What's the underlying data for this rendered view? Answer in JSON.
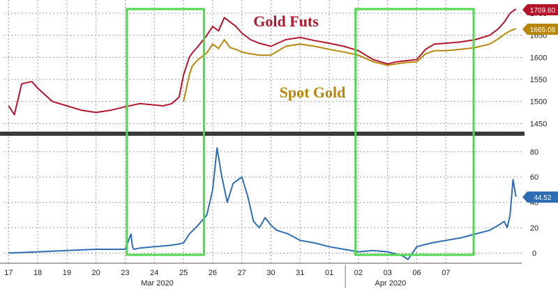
{
  "chart_data": [
    {
      "type": "line",
      "title": "",
      "xlabel": "",
      "ylabel": "",
      "ylim": [
        1430,
        1730
      ],
      "y_ticks": [
        1450,
        1500,
        1550,
        1600,
        1650,
        1700
      ],
      "y_tick_labels": [
        "1450",
        "1500",
        "1550",
        "1600",
        "1650",
        "1700"
      ],
      "annotations": [
        {
          "text": "Gold Futs",
          "color": "#b5142b"
        },
        {
          "text": "Spot Gold",
          "color": "#b8860b"
        }
      ],
      "last_value_badges": [
        {
          "text": "1709.60",
          "color": "#b5142b"
        },
        {
          "text": "1665.08",
          "color": "#b8860b"
        }
      ],
      "series": [
        {
          "color": "#b5142b",
          "x": [
            0,
            0.2,
            0.45,
            0.8,
            1,
            1.5,
            2,
            2.5,
            3,
            3.5,
            4,
            4.5,
            5,
            5.3,
            5.6,
            5.85,
            6,
            6.2,
            6.3,
            6.5,
            6.8,
            7,
            7.2,
            7.4,
            7.6,
            7.8,
            8,
            8.3,
            8.6,
            9,
            9.5,
            10,
            10.5,
            11,
            11.5,
            12,
            12.5,
            13,
            13.3,
            13.6,
            14,
            14.3,
            14.6,
            15,
            15.5,
            16,
            16.5,
            16.8,
            17,
            17.2,
            17.4
          ],
          "y": [
            1490,
            1470,
            1540,
            1545,
            1530,
            1500,
            1490,
            1480,
            1475,
            1480,
            1488,
            1495,
            1492,
            1490,
            1495,
            1510,
            1560,
            1600,
            1610,
            1625,
            1650,
            1670,
            1660,
            1690,
            1680,
            1670,
            1655,
            1640,
            1632,
            1625,
            1640,
            1645,
            1638,
            1632,
            1625,
            1615,
            1595,
            1585,
            1590,
            1592,
            1595,
            1618,
            1630,
            1632,
            1635,
            1640,
            1650,
            1665,
            1680,
            1700,
            1709.6
          ]
        },
        {
          "color": "#b8860b",
          "x": [
            6,
            6.2,
            6.3,
            6.5,
            6.8,
            7,
            7.2,
            7.4,
            7.6,
            7.8,
            8,
            8.3,
            8.6,
            9,
            9.5,
            10,
            10.5,
            11,
            11.5,
            12,
            12.5,
            13,
            13.3,
            13.6,
            14,
            14.3,
            14.6,
            15,
            15.5,
            16,
            16.5,
            16.8,
            17,
            17.2,
            17.4
          ],
          "y": [
            1500,
            1560,
            1580,
            1595,
            1610,
            1630,
            1620,
            1640,
            1622,
            1618,
            1612,
            1608,
            1605,
            1605,
            1625,
            1630,
            1625,
            1618,
            1612,
            1605,
            1590,
            1582,
            1585,
            1588,
            1590,
            1608,
            1615,
            1615,
            1618,
            1622,
            1630,
            1642,
            1652,
            1660,
            1665.08
          ]
        }
      ]
    },
    {
      "type": "line",
      "title": "",
      "xlabel": "",
      "ylabel": "",
      "ylim": [
        -8,
        92
      ],
      "y_ticks": [
        0,
        20,
        40,
        60,
        80
      ],
      "y_tick_labels": [
        "0",
        "20",
        "40",
        "60",
        "80"
      ],
      "last_value_badges": [
        {
          "text": "44.52",
          "color": "#2e6db4"
        }
      ],
      "x_tick_labels": [
        "17",
        "18",
        "19",
        "20",
        "23",
        "24",
        "25",
        "26",
        "27",
        "30",
        "31",
        "01",
        "02",
        "03",
        "06",
        "07"
      ],
      "x_group_labels": [
        "Mar 2020",
        "Apr 2020"
      ],
      "series": [
        {
          "color": "#2e6db4",
          "x": [
            0,
            1,
            2,
            3,
            4,
            4.2,
            4.25,
            4.3,
            4.5,
            5,
            5.5,
            5.8,
            6,
            6.2,
            6.5,
            6.8,
            7,
            7.15,
            7.3,
            7.5,
            7.7,
            8,
            8.2,
            8.4,
            8.6,
            8.8,
            9,
            9.2,
            9.6,
            10,
            10.5,
            11,
            11.5,
            12,
            12.5,
            13,
            13.5,
            13.7,
            14,
            14.5,
            15,
            15.5,
            16,
            16.5,
            16.8,
            17,
            17.1,
            17.2,
            17.3,
            17.4
          ],
          "y": [
            0,
            1,
            2,
            3,
            3,
            15,
            5,
            3,
            4,
            5,
            6,
            7,
            8,
            15,
            22,
            30,
            50,
            83,
            62,
            40,
            55,
            60,
            45,
            25,
            20,
            28,
            22,
            18,
            15,
            10,
            8,
            5,
            3,
            1,
            2,
            1,
            -2,
            -5,
            5,
            8,
            10,
            12,
            15,
            18,
            22,
            25,
            20,
            30,
            58,
            44.52
          ]
        }
      ]
    }
  ]
}
